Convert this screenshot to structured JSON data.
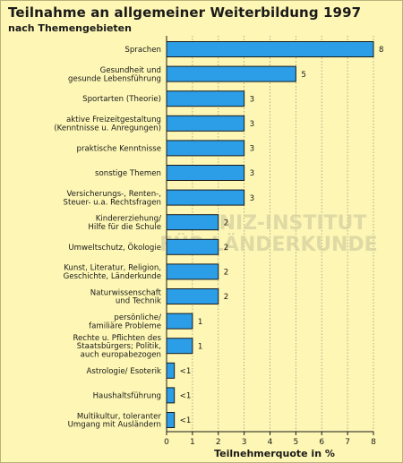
{
  "title": "Teilnahme an allgemeiner Weiterbildung 1997",
  "subtitle": "nach Themengebieten",
  "watermark": [
    "LEIBNIZ-INSTITUT",
    "FÜR LÄNDERKUNDE"
  ],
  "chart_data": {
    "type": "bar",
    "orientation": "horizontal",
    "title": "Teilnahme an allgemeiner Weiterbildung 1997",
    "subtitle": "nach Themengebieten",
    "xlabel": "Teilnehmerquote in %",
    "ylabel": "",
    "xlim": [
      0,
      8
    ],
    "x_ticks": [
      "0",
      "1",
      "2",
      "3",
      "4",
      "5",
      "6",
      "7",
      "8"
    ],
    "grid": "vertical",
    "bar_color": "#2c9ee8",
    "categories": [
      [
        "Sprachen"
      ],
      [
        "Gesundheit und",
        "gesunde Lebensführung"
      ],
      [
        "Sportarten (Theorie)"
      ],
      [
        "aktive Freizeitgestaltung",
        "(Kenntnisse u. Anregungen)"
      ],
      [
        "praktische Kenntnisse"
      ],
      [
        "sonstige Themen"
      ],
      [
        "Versicherungs-, Renten-,",
        "Steuer- u.a. Rechtsfragen"
      ],
      [
        "Kindererziehung/",
        "Hilfe für die Schule"
      ],
      [
        "Umweltschutz, Ökologie"
      ],
      [
        "Kunst, Literatur, Religion,",
        "Geschichte, Länderkunde"
      ],
      [
        "Naturwissenschaft",
        "und Technik"
      ],
      [
        "persönliche/",
        "familiäre Probleme"
      ],
      [
        "Rechte u. Pflichten des",
        "Staatsbürgers; Politik,",
        "auch europabezogen"
      ],
      [
        "Astrologie/ Esoterik"
      ],
      [
        "Haushaltsführung"
      ],
      [
        "Multikultur, toleranter",
        "Umgang mit Ausländern"
      ]
    ],
    "values": [
      8,
      5,
      3,
      3,
      3,
      3,
      3,
      2,
      2,
      2,
      2,
      1,
      1,
      0.3,
      0.3,
      0.3
    ],
    "value_labels": [
      "8",
      "5",
      "3",
      "3",
      "3",
      "3",
      "3",
      "2",
      "2",
      "2",
      "2",
      "1",
      "1",
      "<1",
      "<1",
      "<1"
    ]
  }
}
